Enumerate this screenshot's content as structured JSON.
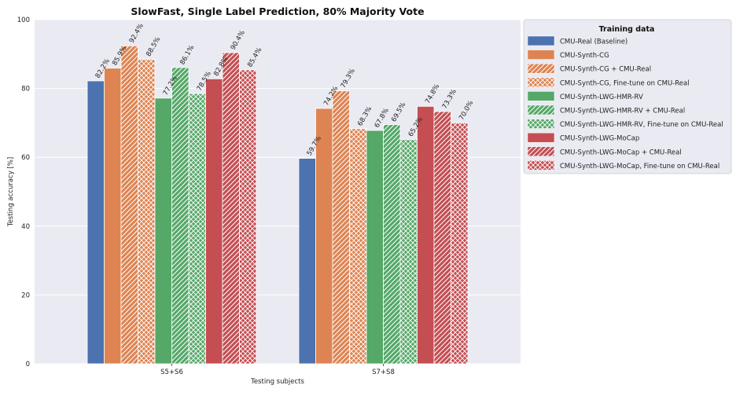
{
  "chart_data": {
    "type": "bar",
    "title": "SlowFast, Single Label Prediction, 80% Majority Vote",
    "xlabel": "Testing subjects",
    "ylabel": "Testing accuracy [%]",
    "ylim": [
      0,
      100
    ],
    "yticks": [
      "0",
      "20",
      "40",
      "60",
      "80",
      "100"
    ],
    "grid": true,
    "legend_title": "Training data",
    "legend_position": "outside-right",
    "categories": [
      "S5+S6",
      "S7+S8"
    ],
    "series": [
      {
        "name": "CMU-Real (Baseline)",
        "values": [
          82.2,
          59.7
        ],
        "labels": [
          "82.2%",
          "59.7%"
        ],
        "color": "#4c72b0",
        "hatch": "none"
      },
      {
        "name": "CMU-Synth-CG",
        "values": [
          85.9,
          74.2
        ],
        "labels": [
          "85.9%",
          "74.2%"
        ],
        "color": "#dd8452",
        "hatch": "none"
      },
      {
        "name": "CMU-Synth-CG + CMU-Real",
        "values": [
          92.4,
          79.3
        ],
        "labels": [
          "92.4%",
          "79.3%"
        ],
        "color": "#dd8452",
        "hatch": "diag"
      },
      {
        "name": "CMU-Synth-CG, Fine-tune on CMU-Real",
        "values": [
          88.5,
          68.3
        ],
        "labels": [
          "88.5%",
          "68.3%"
        ],
        "color": "#dd8452",
        "hatch": "cross"
      },
      {
        "name": "CMU-Synth-LWG-HMR-RV",
        "values": [
          77.2,
          67.8
        ],
        "labels": [
          "77.2%",
          "67.8%"
        ],
        "color": "#55a868",
        "hatch": "none"
      },
      {
        "name": "CMU-Synth-LWG-HMR-RV + CMU-Real",
        "values": [
          86.1,
          69.5
        ],
        "labels": [
          "86.1%",
          "69.5%"
        ],
        "color": "#55a868",
        "hatch": "diag"
      },
      {
        "name": "CMU-Synth-LWG-HMR-RV, Fine-tune on CMU-Real",
        "values": [
          78.5,
          65.2
        ],
        "labels": [
          "78.5%",
          "65.2%"
        ],
        "color": "#55a868",
        "hatch": "cross"
      },
      {
        "name": "CMU-Synth-LWG-MoCap",
        "values": [
          82.8,
          74.8
        ],
        "labels": [
          "82.8%",
          "74.8%"
        ],
        "color": "#c44e52",
        "hatch": "none"
      },
      {
        "name": "CMU-Synth-LWG-MoCap + CMU-Real",
        "values": [
          90.4,
          73.3
        ],
        "labels": [
          "90.4%",
          "73.3%"
        ],
        "color": "#c44e52",
        "hatch": "diag"
      },
      {
        "name": "CMU-Synth-LWG-MoCap, Fine-tune on CMU-Real",
        "values": [
          85.4,
          70.0
        ],
        "labels": [
          "85.4%",
          "70.0%"
        ],
        "color": "#c44e52",
        "hatch": "cross"
      }
    ]
  }
}
